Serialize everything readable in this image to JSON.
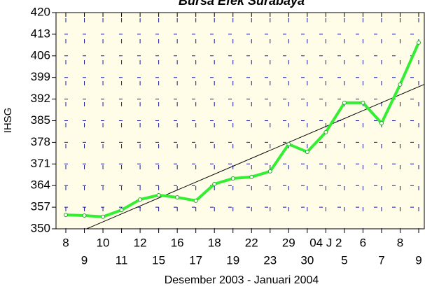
{
  "chart_data": {
    "type": "line",
    "title": "Bursa Efek Surabaya",
    "xlabel": "Desember 2003 -  Januari 2004",
    "ylabel": "IHSG",
    "categories": [
      "8",
      "9",
      "10",
      "11",
      "12",
      "15",
      "16",
      "17",
      "18",
      "19",
      "22",
      "23",
      "29",
      "30",
      "04 J 2",
      "5",
      "6",
      "7",
      "8",
      "9"
    ],
    "series": [
      {
        "color": "#33ee33",
        "values": [
          354.5,
          354.3,
          353.9,
          356.1,
          359.5,
          360.9,
          360.2,
          359.1,
          364.5,
          366.3,
          366.8,
          368.6,
          377.4,
          374.9,
          381.3,
          390.8,
          390.8,
          384.2,
          396.7,
          410.3
        ]
      }
    ],
    "ylim": [
      350,
      420
    ],
    "yticks": [
      350,
      357,
      364,
      371,
      378,
      385,
      392,
      399,
      406,
      413,
      420
    ],
    "grid": true,
    "trendline": true,
    "trendline_color": "#000000",
    "background": "#fffde8"
  }
}
